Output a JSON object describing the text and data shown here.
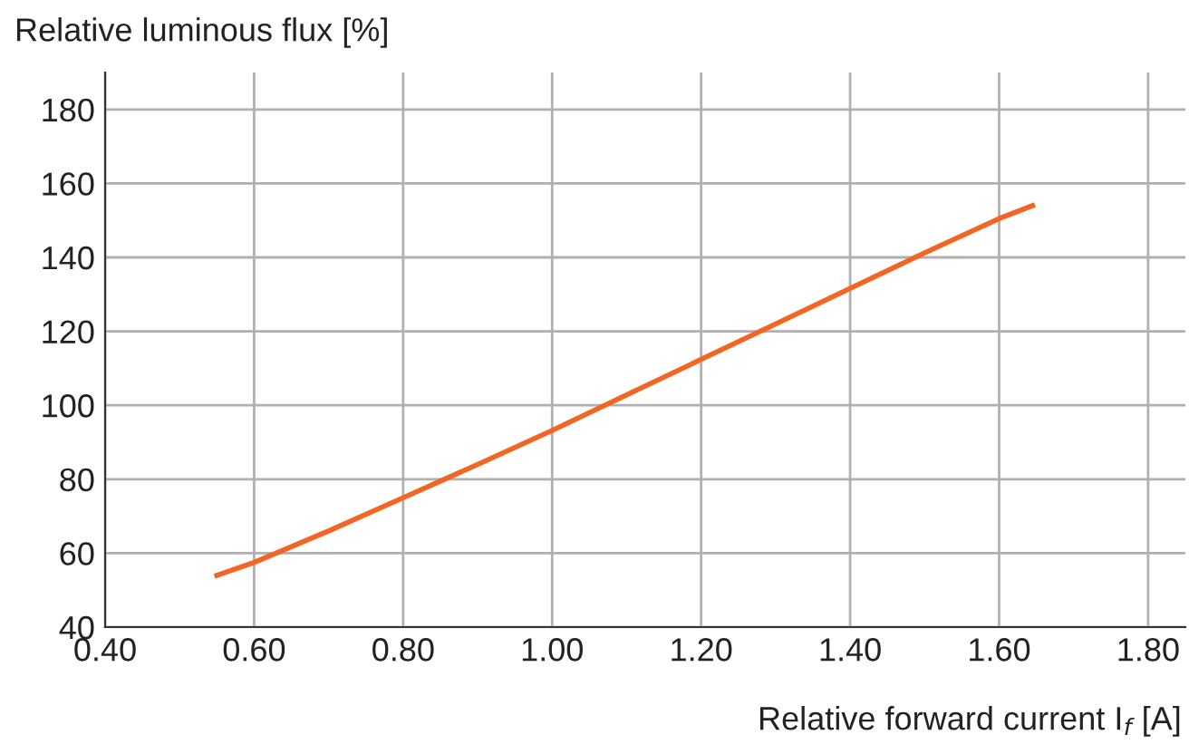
{
  "chart_data": {
    "type": "line",
    "xlabel": "Relative forward current I$_{f}$ [A]",
    "ylabel": "Relative luminous flux [%]",
    "series": [
      {
        "color": "#f26522",
        "x": [
          0.55,
          0.6,
          0.7,
          0.8,
          0.9,
          1.0,
          1.1,
          1.2,
          1.3,
          1.4,
          1.5,
          1.6,
          1.645
        ],
        "values": [
          54,
          57.5,
          66,
          75,
          84,
          93.2,
          102.8,
          112.4,
          122,
          131.6,
          141.2,
          150.5,
          154
        ]
      }
    ],
    "xlim": [
      0.4,
      1.85
    ],
    "ylim": [
      40,
      190
    ],
    "xticks": [
      {
        "value": 0.4,
        "label": "0.40"
      },
      {
        "value": 0.6,
        "label": "0.60"
      },
      {
        "value": 0.8,
        "label": "0.80"
      },
      {
        "value": 1.0,
        "label": "1.00"
      },
      {
        "value": 1.2,
        "label": "1.20"
      },
      {
        "value": 1.4,
        "label": "1.40"
      },
      {
        "value": 1.6,
        "label": "1.60"
      },
      {
        "value": 1.8,
        "label": "1.80"
      }
    ],
    "yticks": [
      40,
      60,
      80,
      100,
      120,
      140,
      160,
      180
    ],
    "grid": true,
    "marker": "none",
    "line_style": "solid"
  }
}
